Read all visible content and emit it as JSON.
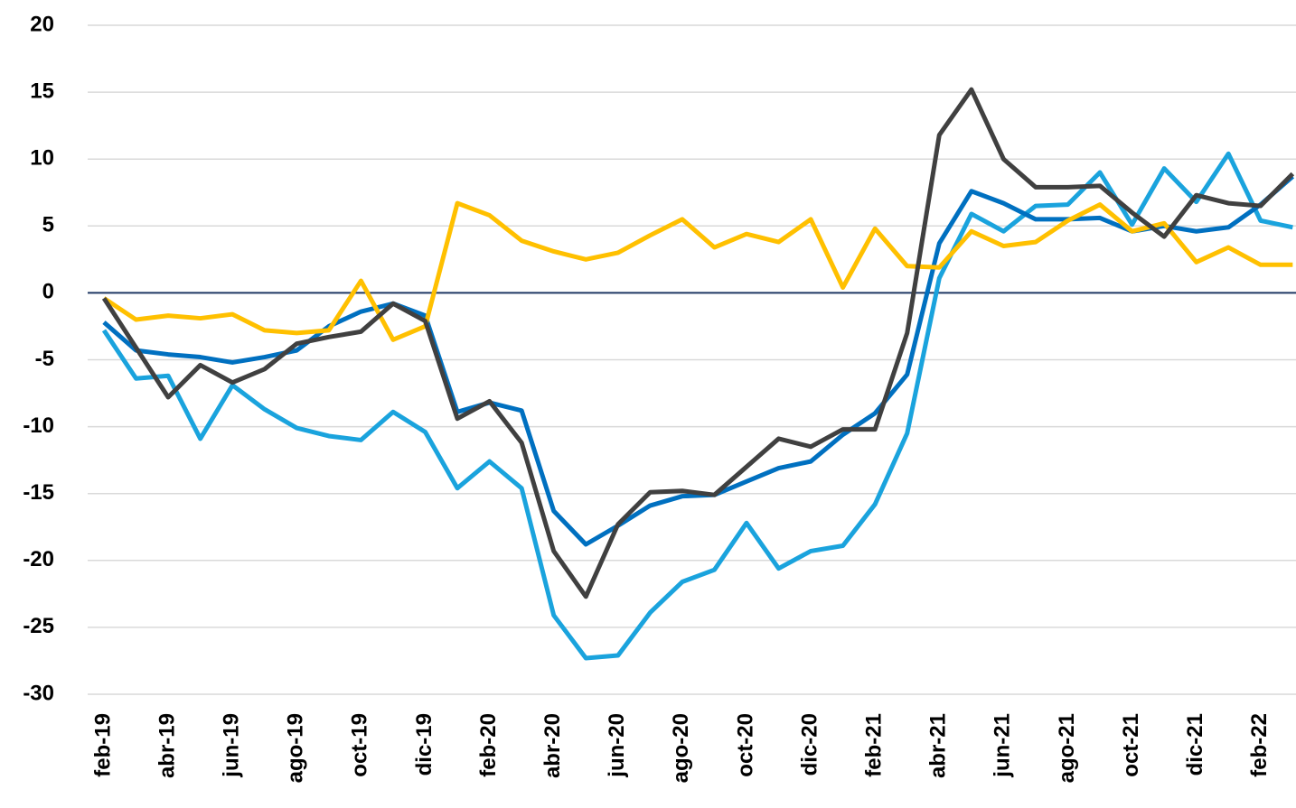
{
  "chart_data": {
    "type": "line",
    "categories": [
      "feb-19",
      null,
      "abr-19",
      null,
      "jun-19",
      null,
      "ago-19",
      null,
      "oct-19",
      null,
      "dic-19",
      null,
      "feb-20",
      null,
      "abr-20",
      null,
      "jun-20",
      null,
      "ago-20",
      null,
      "oct-20",
      null,
      "dic-20",
      null,
      "feb-21",
      null,
      "abr-21",
      null,
      "jun-21",
      null,
      "ago-21",
      null,
      "oct-21",
      null,
      "dic-21",
      null,
      "feb-22",
      null
    ],
    "series": [
      {
        "color": "#1aa3dd",
        "values": [
          -2.8,
          -6.4,
          -6.2,
          -10.9,
          -6.9,
          -8.7,
          -10.1,
          -10.7,
          -11,
          -8.9,
          -10.4,
          -14.6,
          -12.6,
          -14.6,
          -24.1,
          -27.3,
          -27.1,
          -23.9,
          -21.6,
          -20.7,
          -17.2,
          -20.6,
          -19.3,
          -18.9,
          -15.8,
          -10.5,
          1.1,
          5.9,
          4.6,
          6.5,
          6.6,
          9,
          5.1,
          9.3,
          6.8,
          10.4,
          5.4,
          4.9
        ]
      },
      {
        "color": "#0070c0",
        "values": [
          -2.2,
          -4.3,
          -4.6,
          -4.8,
          -5.2,
          -4.8,
          -4.3,
          -2.5,
          -1.4,
          -0.8,
          -1.7,
          -8.9,
          -8.2,
          -8.8,
          -16.3,
          -18.8,
          -17.4,
          -15.9,
          -15.2,
          -15.1,
          -14.1,
          -13.1,
          -12.6,
          -10.6,
          -9,
          -6.1,
          3.7,
          7.6,
          6.7,
          5.5,
          5.5,
          5.6,
          4.6,
          5,
          4.6,
          4.9,
          6.6,
          8.7
        ]
      },
      {
        "color": "#ffc000",
        "values": [
          -0.4,
          -2,
          -1.7,
          -1.9,
          -1.6,
          -2.8,
          -3,
          -2.8,
          0.9,
          -3.5,
          -2.5,
          6.7,
          5.8,
          3.9,
          3.1,
          2.5,
          3,
          4.3,
          5.5,
          3.4,
          4.4,
          3.8,
          5.5,
          0.4,
          4.8,
          2,
          1.9,
          4.6,
          3.5,
          3.8,
          5.4,
          6.6,
          4.6,
          5.2,
          2.3,
          3.4,
          2.1,
          2.1
        ]
      },
      {
        "color": "#404040",
        "values": [
          -0.4,
          -4.1,
          -7.8,
          -5.4,
          -6.7,
          -5.7,
          -3.8,
          -3.3,
          -2.9,
          -0.8,
          -2.1,
          -9.4,
          -8.1,
          -11.2,
          -19.3,
          -22.7,
          -17.3,
          -14.9,
          -14.8,
          -15.1,
          -13,
          -10.9,
          -11.5,
          -10.2,
          -10.2,
          -3,
          11.8,
          15.2,
          10,
          7.9,
          7.9,
          8,
          6,
          4.2,
          7.3,
          6.7,
          6.5,
          8.9
        ]
      }
    ],
    "ylim": [
      -30,
      20
    ],
    "yticks": [
      -30,
      -25,
      -20,
      -15,
      -10,
      -5,
      0,
      5,
      10,
      15,
      20
    ],
    "grid": true
  }
}
